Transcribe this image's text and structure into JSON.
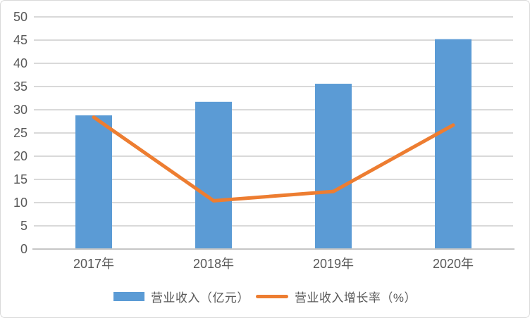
{
  "chart_data": {
    "type": "combo",
    "title": "",
    "xlabel": "",
    "ylabel": "",
    "categories": [
      "2017年",
      "2018年",
      "2019年",
      "2020年"
    ],
    "series": [
      {
        "name": "营业收入（亿元）",
        "type": "bar",
        "color": "#5B9BD5",
        "values": [
          28.8,
          31.7,
          35.6,
          45.2
        ]
      },
      {
        "name": "营业收入增长率（%）",
        "type": "line",
        "color": "#ED7D31",
        "values": [
          28.4,
          10.4,
          12.4,
          26.7
        ]
      }
    ],
    "ylim": [
      0,
      50
    ],
    "ytick_step": 5,
    "ytick_labels": [
      "0",
      "5",
      "10",
      "15",
      "20",
      "25",
      "30",
      "35",
      "40",
      "45",
      "50"
    ],
    "grid": "horizontal",
    "legend_position": "bottom"
  },
  "style": {
    "gridline_color": "#D9D9D9",
    "axis_line_color": "#C6C6C6",
    "tick_text_color": "#595959",
    "background": "#FFFFFF",
    "frame_border_color": "#D9D9D9"
  }
}
